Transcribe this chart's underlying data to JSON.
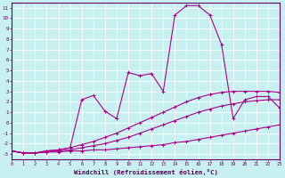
{
  "xlabel": "Windchill (Refroidissement éolien,°C)",
  "background_color": "#c8f0f0",
  "line_color": "#aa0088",
  "grid_color": "#ffffff",
  "xlim": [
    0,
    23
  ],
  "ylim": [
    -3.5,
    11.5
  ],
  "series": [
    [
      -2.7,
      -2.9,
      -2.9,
      -2.8,
      -2.8,
      -2.7,
      -2.7,
      -2.6,
      -2.6,
      -2.5,
      -2.4,
      -2.3,
      -2.2,
      -2.1,
      -1.9,
      -1.8,
      -1.6,
      -1.4,
      -1.2,
      -1.0,
      -0.8,
      -0.6,
      -0.4,
      -0.2
    ],
    [
      -2.7,
      -2.9,
      -2.9,
      -2.8,
      -2.7,
      -2.6,
      -2.4,
      -2.2,
      -2.0,
      -1.7,
      -1.4,
      -1.0,
      -0.6,
      -0.2,
      0.2,
      0.6,
      1.0,
      1.3,
      1.6,
      1.8,
      2.0,
      2.1,
      2.2,
      2.2
    ],
    [
      -2.7,
      -2.9,
      -2.9,
      -2.7,
      -2.6,
      -2.4,
      -2.1,
      -1.8,
      -1.4,
      -1.0,
      -0.5,
      0.0,
      0.5,
      1.0,
      1.5,
      2.0,
      2.4,
      2.7,
      2.9,
      3.0,
      3.0,
      3.0,
      3.0,
      2.9
    ],
    [
      -2.7,
      -2.9,
      -2.9,
      -2.7,
      -2.6,
      -2.4,
      2.2,
      2.6,
      1.1,
      0.4,
      4.8,
      4.5,
      4.7,
      3.0,
      10.3,
      11.2,
      11.2,
      10.3,
      7.5,
      0.4,
      2.2,
      2.5,
      2.5,
      1.4
    ]
  ]
}
